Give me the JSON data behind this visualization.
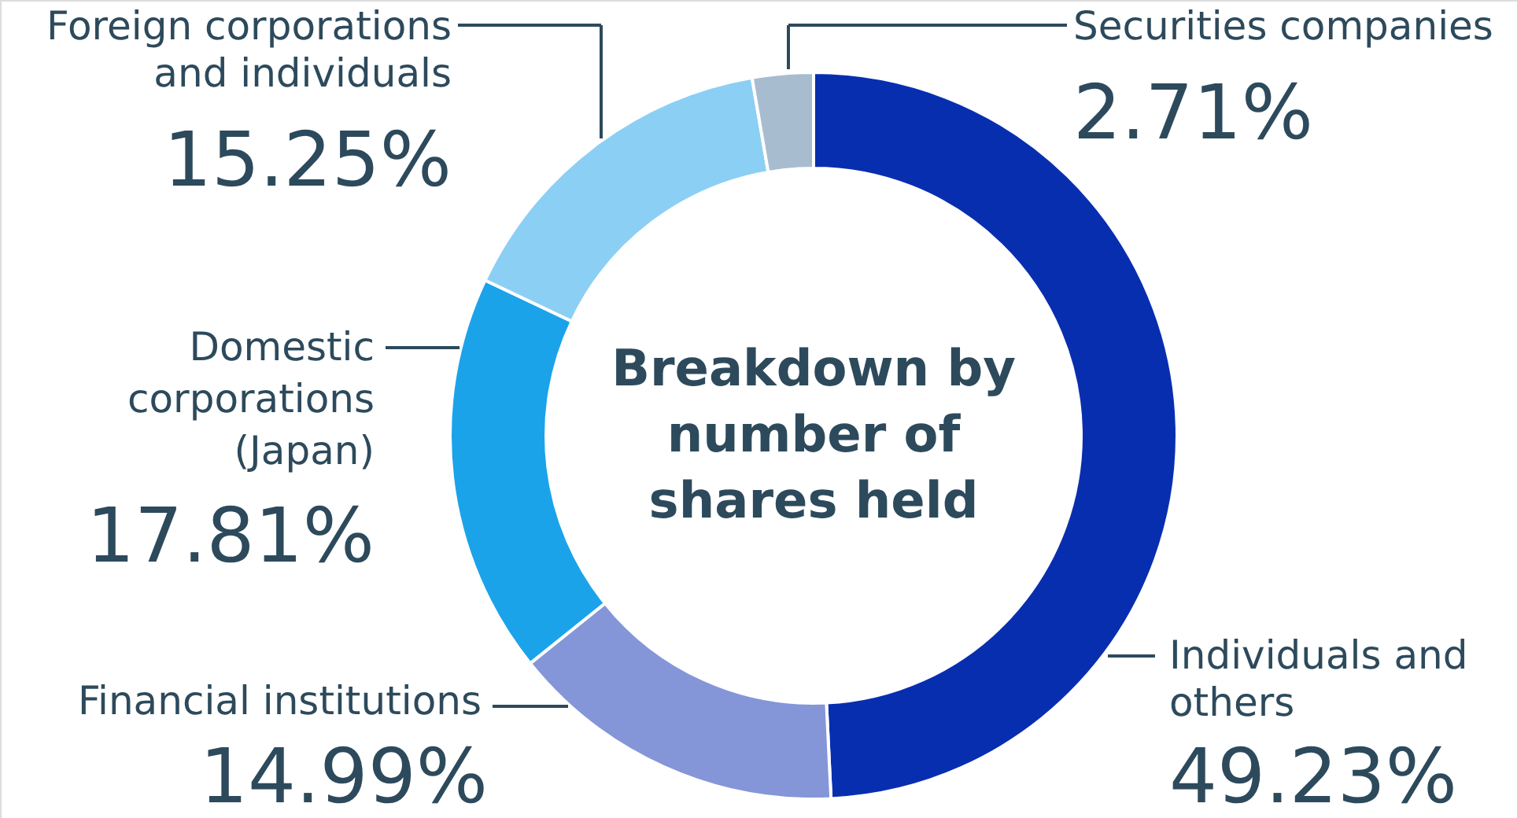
{
  "chart_data": {
    "type": "donut",
    "title": "Breakdown by number of shares held",
    "categories": [
      "Individuals and others",
      "Financial institutions",
      "Domestic corporations (Japan)",
      "Foreign corporations and individuals",
      "Securities companies"
    ],
    "values": [
      49.23,
      14.99,
      17.81,
      15.25,
      2.71
    ],
    "colors": [
      "#082eb0",
      "#8496d8",
      "#1ba3ea",
      "#8ccff4",
      "#a8bccf"
    ],
    "value_labels": [
      "49.23%",
      "14.99%",
      "17.81%",
      "15.25%",
      "2.71%"
    ]
  }
}
